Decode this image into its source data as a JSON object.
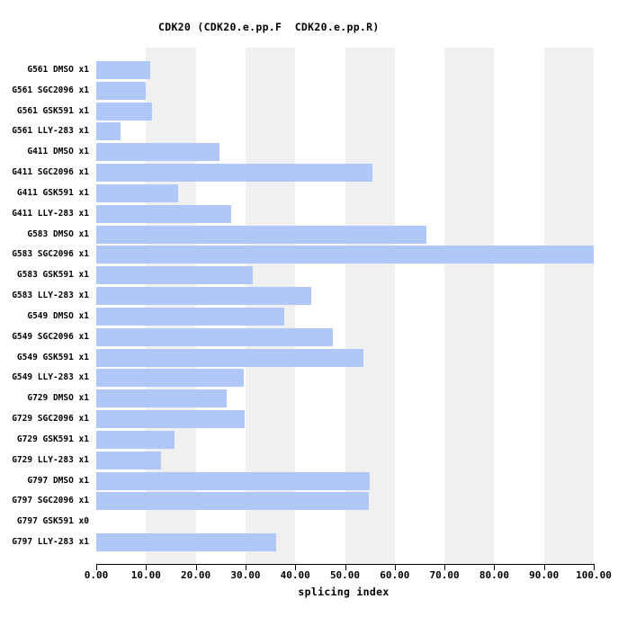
{
  "title": "CDK20 (CDK20.e.pp.F  CDK20.e.pp.R)",
  "chart_data": {
    "type": "bar",
    "orientation": "horizontal",
    "title": "CDK20 (CDK20.e.pp.F  CDK20.e.pp.R)",
    "xlabel": "splicing index",
    "xlim": [
      0,
      100
    ],
    "xticks": [
      0,
      10,
      20,
      30,
      40,
      50,
      60,
      70,
      80,
      90,
      100
    ],
    "xtick_labels": [
      "0.00",
      "10.00",
      "20.00",
      "30.00",
      "40.00",
      "50.00",
      "60.00",
      "70.00",
      "80.00",
      "90.00",
      "100.00"
    ],
    "categories": [
      "G561 DMSO x1",
      "G561 SGC2096 x1",
      "G561 GSK591 x1",
      "G561 LLY-283 x1",
      "G411 DMSO x1",
      "G411 SGC2096 x1",
      "G411 GSK591 x1",
      "G411 LLY-283 x1",
      "G583 DMSO x1",
      "G583 SGC2096 x1",
      "G583 GSK591 x1",
      "G583 LLY-283 x1",
      "G549 DMSO x1",
      "G549 SGC2096 x1",
      "G549 GSK591 x1",
      "G549 LLY-283 x1",
      "G729 DMSO x1",
      "G729 SGC2096 x1",
      "G729 GSK591 x1",
      "G729 LLY-283 x1",
      "G797 DMSO x1",
      "G797 SGC2096 x1",
      "G797 GSK591 x0",
      "G797 LLY-283 x1"
    ],
    "values": [
      10.8,
      10.0,
      11.2,
      4.8,
      24.7,
      55.5,
      16.5,
      27.1,
      66.4,
      100.0,
      31.5,
      43.2,
      37.8,
      47.6,
      53.7,
      29.6,
      26.2,
      29.8,
      15.7,
      13.1,
      54.9,
      54.8,
      0.0,
      36.2
    ],
    "bar_color": "#b0c8f8",
    "band_color": "#f0f0f0",
    "background_color": "#ffffff",
    "grid": "alternating vertical bands every 10 units",
    "legend": "none"
  }
}
